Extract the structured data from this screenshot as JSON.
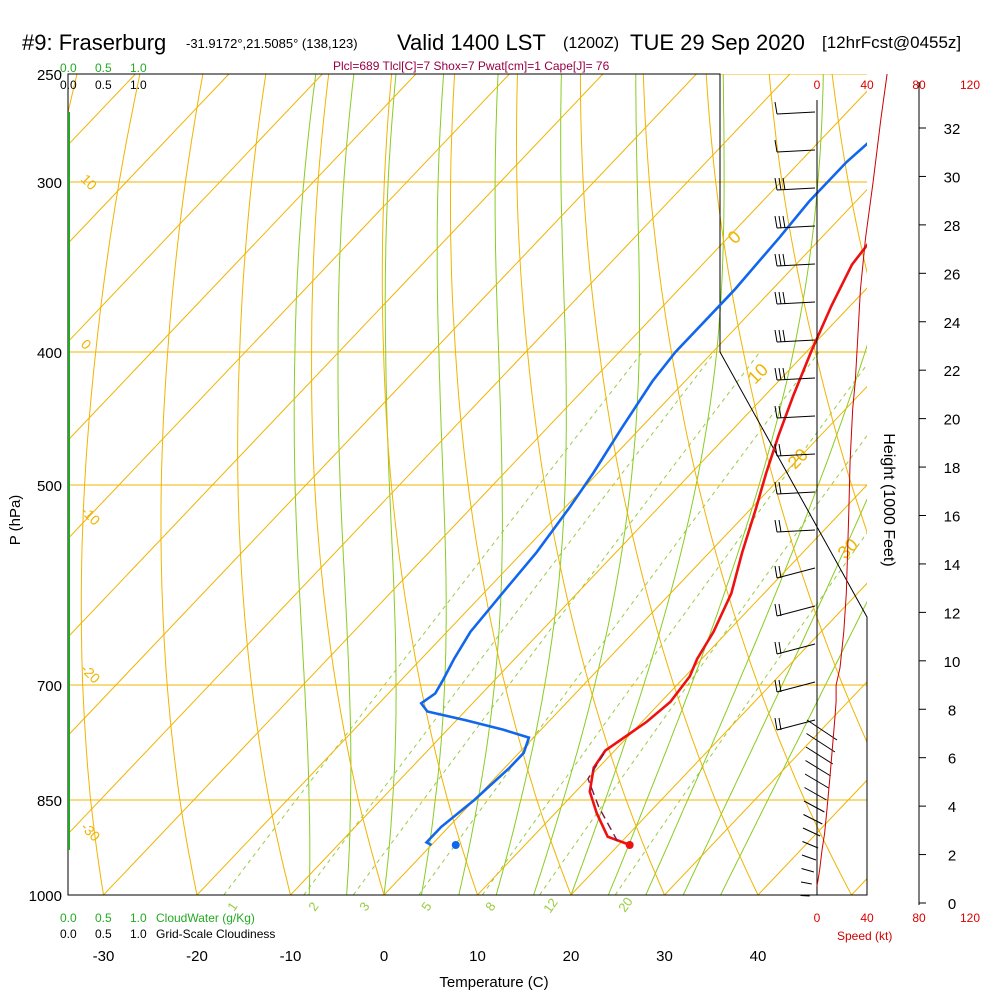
{
  "header": {
    "station": "#9: Fraserburg",
    "coords": "-31.9172°,21.5085° (138,123)",
    "valid": "Valid 1400 LST",
    "zulu": "(1200Z)",
    "date": "TUE 29 Sep 2020",
    "forecast": "[12hrFcst@0455z]"
  },
  "indices": "Plcl=689 Tlcl[C]=7 Shox=7 Pwat[cm]=1 Cape[J]= 76",
  "bottom_labels": {
    "cloudwater_ticks": [
      "0.0",
      "0.5",
      "1.0"
    ],
    "cloudwater_label": "CloudWater (g/Kg)",
    "cloudiness_ticks": [
      "0.0",
      "0.5",
      "1.0"
    ],
    "cloudiness_label": "Grid-Scale Cloudiness",
    "speed_ticks": [
      "0",
      "40",
      "80",
      "120"
    ],
    "speed_label": "Speed (kt)"
  },
  "top_labels": {
    "cloudwater_ticks": [
      "0.0",
      "0.5",
      "1.0"
    ],
    "cloudiness_ticks": [
      "0.0",
      "0.5",
      "1.0"
    ],
    "speed_ticks": [
      "0",
      "40",
      "80",
      "120"
    ]
  },
  "colors": {
    "temperature": "#ee1111",
    "dewpoint": "#1166ee",
    "isotherm": "#f0b400",
    "dry_adiabat": "#f0b400",
    "moist_adiabat": "#88cc22",
    "mixing_ratio": "#99cc44",
    "parcel": "#7a1a4a",
    "cloudwater": "#22aa22",
    "speed": "#cc0000",
    "indices": "#990044"
  },
  "chart_data": {
    "type": "line",
    "title": "",
    "xlabel": "Temperature (C)",
    "ylabel": "P (hPa)",
    "y2label": "Height (1000 Feet)",
    "x_ticks": [
      "-30",
      "-20",
      "-10",
      "0",
      "10",
      "20",
      "30",
      "40"
    ],
    "x_tick_values": [
      -30,
      -20,
      -10,
      0,
      10,
      20,
      30,
      40
    ],
    "xlim": [
      -35,
      45
    ],
    "ylim": [
      1000,
      250
    ],
    "y_ticks": [
      "250",
      "300",
      "400",
      "500",
      "700",
      "850",
      "1000"
    ],
    "y_tick_values": [
      250,
      300,
      400,
      500,
      700,
      850,
      1000
    ],
    "height_ticks": [
      "0",
      "2",
      "4",
      "6",
      "8",
      "10",
      "12",
      "14",
      "16",
      "18",
      "20",
      "22",
      "24",
      "26",
      "28",
      "30",
      "32"
    ],
    "height_tick_values": [
      0,
      2,
      4,
      6,
      8,
      10,
      12,
      14,
      16,
      18,
      20,
      22,
      24,
      26,
      28,
      30,
      32
    ],
    "isotherm_labels": [
      "10",
      "0",
      "-10",
      "-20",
      "-30"
    ],
    "dry_adiabat_labels": [
      "0",
      "10",
      "20",
      "30"
    ],
    "mixing_ratio_labels": [
      "1",
      "2",
      "3",
      "5",
      "8",
      "12",
      "20"
    ],
    "series": [
      {
        "name": "Temperature",
        "points": [
          [
            21.0,
            917
          ],
          [
            18.0,
            905
          ],
          [
            14.5,
            870
          ],
          [
            11.5,
            838
          ],
          [
            9.5,
            805
          ],
          [
            9.0,
            782
          ],
          [
            10.5,
            745
          ],
          [
            11.0,
            720
          ],
          [
            10.5,
            690
          ],
          [
            9.5,
            670
          ],
          [
            8.5,
            640
          ],
          [
            6.5,
            600
          ],
          [
            3.5,
            560
          ],
          [
            0.5,
            520
          ],
          [
            -2.0,
            490
          ],
          [
            -4.5,
            460
          ],
          [
            -7.0,
            430
          ],
          [
            -9.5,
            400
          ],
          [
            -12.0,
            370
          ],
          [
            -14.0,
            345
          ],
          [
            -14.5,
            330
          ],
          [
            -14.5,
            310
          ],
          [
            -15.0,
            290
          ],
          [
            -14.5,
            265
          ]
        ]
      },
      {
        "name": "Dewpoint",
        "points": [
          [
            0.0,
            918
          ],
          [
            -0.8,
            914
          ],
          [
            -0.8,
            890
          ],
          [
            0.0,
            850
          ],
          [
            0.5,
            805
          ],
          [
            0.5,
            785
          ],
          [
            -0.5,
            765
          ],
          [
            -4.0,
            755
          ],
          [
            -9.0,
            743
          ],
          [
            -14.0,
            732
          ],
          [
            -15.5,
            722
          ],
          [
            -15.0,
            710
          ],
          [
            -15.5,
            695
          ],
          [
            -16.5,
            670
          ],
          [
            -17.5,
            640
          ],
          [
            -18.0,
            600
          ],
          [
            -18.5,
            560
          ],
          [
            -19.5,
            520
          ],
          [
            -20.5,
            490
          ],
          [
            -22.0,
            455
          ],
          [
            -23.5,
            420
          ],
          [
            -24.0,
            400
          ],
          [
            -24.0,
            360
          ],
          [
            -24.5,
            330
          ],
          [
            -25.0,
            310
          ],
          [
            -25.0,
            290
          ],
          [
            -24.0,
            265
          ]
        ]
      },
      {
        "name": "Parcel",
        "points": [
          [
            19.5,
            912
          ],
          [
            14.0,
            860
          ],
          [
            10.0,
            820
          ],
          [
            9.0,
            780
          ]
        ]
      }
    ],
    "surface_temperature": 21.3,
    "surface_dewpoint": 2.7,
    "surface_pressure": 918,
    "wind_speed_profile": [
      [
        0,
        985
      ],
      [
        2,
        960
      ],
      [
        4,
        925
      ],
      [
        6,
        900
      ],
      [
        8,
        860
      ],
      [
        10,
        820
      ],
      [
        12,
        780
      ],
      [
        14,
        740
      ],
      [
        15,
        720
      ],
      [
        15,
        700
      ],
      [
        18,
        680
      ],
      [
        21,
        640
      ],
      [
        23,
        600
      ],
      [
        24,
        560
      ],
      [
        25,
        520
      ],
      [
        26,
        480
      ],
      [
        28,
        440
      ],
      [
        30,
        420
      ],
      [
        32,
        390
      ],
      [
        34,
        360
      ],
      [
        38,
        330
      ],
      [
        44,
        300
      ],
      [
        50,
        270
      ],
      [
        55,
        250
      ]
    ]
  }
}
